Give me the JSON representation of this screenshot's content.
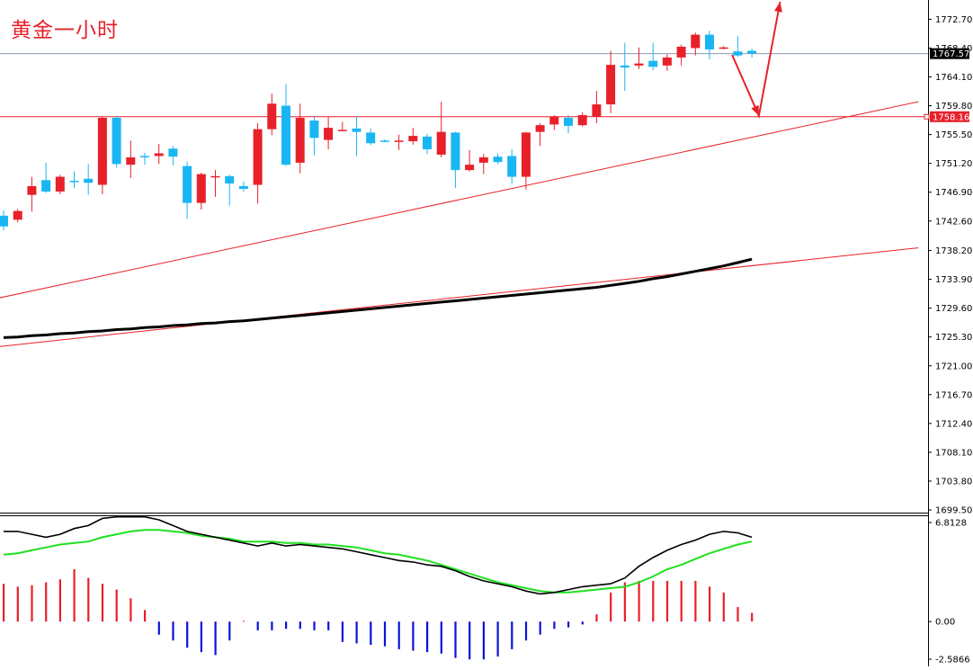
{
  "title": "黄金一小时",
  "chart_data": [
    {
      "type": "candlestick",
      "title": "黄金一小时",
      "ylim": [
        1699.5,
        1774.5
      ],
      "yticks": [
        "1772.70",
        "1768.40",
        "1764.10",
        "1759.80",
        "1755.50",
        "1751.20",
        "1746.90",
        "1742.60",
        "1738.20",
        "1733.90",
        "1729.60",
        "1725.30",
        "1721.00",
        "1716.70",
        "1712.40",
        "1708.10",
        "1703.80",
        "1699.50"
      ],
      "price_markers": [
        {
          "label": "1767.57",
          "value": 1767.57,
          "color": "#000000",
          "text_color": "#ffffff",
          "line_color": "#8a9ab5"
        },
        {
          "label": "1758.16",
          "value": 1758.16,
          "color": "#e8202a",
          "text_color": "#ffffff",
          "line_color": "#e8202a"
        }
      ],
      "up_color": "#e8202a",
      "down_color": "#1ab6f3",
      "candles": [
        [
          1743.4,
          1741.8,
          1744.2,
          1741.2
        ],
        [
          1742.8,
          1744.1,
          1744.4,
          1742.4
        ],
        [
          1746.5,
          1747.8,
          1749.2,
          1744.0
        ],
        [
          1748.7,
          1747.0,
          1751.3,
          1746.8
        ],
        [
          1747.0,
          1749.2,
          1749.5,
          1746.6
        ],
        [
          1748.6,
          1748.4,
          1750.0,
          1747.5
        ],
        [
          1748.9,
          1748.3,
          1751.1,
          1746.5
        ],
        [
          1748.0,
          1758.0,
          1758.2,
          1746.6
        ],
        [
          1758.0,
          1751.1,
          1758.3,
          1750.6
        ],
        [
          1751.0,
          1752.1,
          1754.6,
          1749.0
        ],
        [
          1752.3,
          1752.2,
          1752.8,
          1751.0
        ],
        [
          1752.3,
          1752.7,
          1754.1,
          1751.1
        ],
        [
          1753.4,
          1752.2,
          1753.8,
          1750.9
        ],
        [
          1750.8,
          1745.3,
          1751.5,
          1742.9
        ],
        [
          1745.3,
          1749.6,
          1749.8,
          1744.3
        ],
        [
          1749.3,
          1749.3,
          1750.2,
          1746.2
        ],
        [
          1749.3,
          1748.2,
          1749.5,
          1744.9
        ],
        [
          1747.8,
          1747.4,
          1748.5,
          1747.0
        ],
        [
          1748.0,
          1756.3,
          1757.2,
          1745.2
        ],
        [
          1756.3,
          1760.1,
          1761.6,
          1755.4
        ],
        [
          1759.8,
          1751.0,
          1763.0,
          1750.8
        ],
        [
          1751.3,
          1758.0,
          1760.1,
          1749.7
        ],
        [
          1757.6,
          1755.0,
          1758.3,
          1752.4
        ],
        [
          1754.7,
          1756.5,
          1758.2,
          1753.3
        ],
        [
          1756.2,
          1756.2,
          1757.4,
          1756.0
        ],
        [
          1756.4,
          1755.9,
          1758.2,
          1752.3
        ],
        [
          1755.8,
          1754.2,
          1756.4,
          1753.9
        ],
        [
          1754.6,
          1754.5,
          1754.8,
          1754.3
        ],
        [
          1754.6,
          1754.6,
          1755.5,
          1753.2
        ],
        [
          1754.5,
          1755.3,
          1756.5,
          1754.0
        ],
        [
          1755.2,
          1753.3,
          1755.6,
          1752.6
        ],
        [
          1752.5,
          1755.9,
          1760.4,
          1752.1
        ],
        [
          1755.8,
          1750.2,
          1755.9,
          1747.5
        ],
        [
          1750.2,
          1751.0,
          1753.2,
          1750.0
        ],
        [
          1751.3,
          1752.1,
          1752.6,
          1749.6
        ],
        [
          1752.2,
          1751.4,
          1752.7,
          1751.1
        ],
        [
          1752.3,
          1749.2,
          1753.3,
          1748.2
        ],
        [
          1749.2,
          1755.8,
          1755.9,
          1747.3
        ],
        [
          1755.9,
          1756.9,
          1757.2,
          1753.8
        ],
        [
          1757.0,
          1758.2,
          1758.4,
          1756.2
        ],
        [
          1758.0,
          1756.8,
          1758.4,
          1755.7
        ],
        [
          1756.9,
          1758.4,
          1758.8,
          1756.7
        ],
        [
          1758.2,
          1760.0,
          1762.0,
          1757.2
        ],
        [
          1760.0,
          1765.9,
          1768.0,
          1758.7
        ],
        [
          1765.8,
          1765.5,
          1769.2,
          1762.0
        ],
        [
          1765.8,
          1766.1,
          1768.5,
          1765.3
        ],
        [
          1766.5,
          1765.6,
          1769.2,
          1765.1
        ],
        [
          1765.8,
          1767.0,
          1767.5,
          1765.0
        ],
        [
          1767.0,
          1768.6,
          1768.9,
          1765.8
        ],
        [
          1768.4,
          1770.4,
          1770.7,
          1767.3
        ],
        [
          1770.4,
          1768.2,
          1771.0,
          1766.7
        ],
        [
          1768.3,
          1768.5,
          1768.7,
          1768.2
        ],
        [
          1767.9,
          1767.3,
          1770.2,
          1767.1
        ],
        [
          1768.0,
          1767.6,
          1768.3,
          1767.0
        ]
      ],
      "moving_average": [
        1725.2,
        1725.3,
        1725.5,
        1725.6,
        1725.8,
        1725.9,
        1726.1,
        1726.2,
        1726.4,
        1726.5,
        1726.7,
        1726.8,
        1727.0,
        1727.1,
        1727.3,
        1727.4,
        1727.6,
        1727.7,
        1727.9,
        1728.1,
        1728.3,
        1728.5,
        1728.7,
        1728.9,
        1729.1,
        1729.3,
        1729.5,
        1729.7,
        1729.9,
        1730.1,
        1730.3,
        1730.5,
        1730.7,
        1730.9,
        1731.1,
        1731.3,
        1731.5,
        1731.7,
        1731.9,
        1732.1,
        1732.3,
        1732.5,
        1732.7,
        1733.0,
        1733.3,
        1733.6,
        1734.0,
        1734.3,
        1734.7,
        1735.1,
        1735.5,
        1735.9,
        1736.4,
        1736.9
      ],
      "trendlines": [
        {
          "from": [
            -0.6,
            1731.0
          ],
          "to": [
            64.8,
            1760.4
          ],
          "color": "#e8202a"
        },
        {
          "from": [
            -0.6,
            1723.8
          ],
          "to": [
            64.8,
            1738.6
          ],
          "color": "#e8202a"
        }
      ],
      "forecast_arrow": {
        "points": [
          [
            51.6,
            1767.4
          ],
          [
            53.5,
            1758.3
          ],
          [
            55.0,
            1775.3
          ]
        ],
        "color": "#e8202a"
      }
    },
    {
      "type": "bar+line",
      "ylim": [
        -2.5866,
        6.8128
      ],
      "yticks": [
        "6.8128",
        "0.00",
        "-2.5866"
      ],
      "up_color": "#e8202a",
      "down_color": "#0a14d8",
      "histogram": [
        2.6,
        2.4,
        2.5,
        2.7,
        2.9,
        3.6,
        3.0,
        2.6,
        2.2,
        1.6,
        0.8,
        -0.9,
        -1.3,
        -1.8,
        -2.1,
        -2.3,
        -1.3,
        0.05,
        -0.6,
        -0.6,
        -0.5,
        -0.5,
        -0.6,
        -0.6,
        -1.4,
        -1.5,
        -1.6,
        -1.7,
        -1.9,
        -2.0,
        -2.1,
        -2.2,
        -2.5,
        -2.6,
        -2.6,
        -2.4,
        -1.9,
        -1.3,
        -0.9,
        -0.5,
        -0.4,
        -0.2,
        0.5,
        2.0,
        2.7,
        2.8,
        2.8,
        2.8,
        2.8,
        2.8,
        2.4,
        2.0,
        1.0,
        0.6
      ],
      "fast_line": [
        6.2,
        6.2,
        6.0,
        5.8,
        6.0,
        6.4,
        6.6,
        7.1,
        7.2,
        7.2,
        7.2,
        7.0,
        6.6,
        6.2,
        6.0,
        5.8,
        5.6,
        5.4,
        5.2,
        5.4,
        5.2,
        5.3,
        5.2,
        5.1,
        5.0,
        4.8,
        4.6,
        4.4,
        4.2,
        4.1,
        3.9,
        3.8,
        3.5,
        3.1,
        2.8,
        2.6,
        2.4,
        2.1,
        1.9,
        2.0,
        2.2,
        2.4,
        2.5,
        2.6,
        3.0,
        3.8,
        4.4,
        4.9,
        5.3,
        5.6,
        6.0,
        6.2,
        6.1,
        5.8
      ],
      "signal_line": [
        4.6,
        4.7,
        4.9,
        5.1,
        5.3,
        5.4,
        5.5,
        5.8,
        6.0,
        6.2,
        6.3,
        6.3,
        6.2,
        6.1,
        5.9,
        5.8,
        5.7,
        5.5,
        5.5,
        5.5,
        5.4,
        5.4,
        5.3,
        5.3,
        5.2,
        5.1,
        4.9,
        4.7,
        4.6,
        4.4,
        4.2,
        3.9,
        3.6,
        3.3,
        3.0,
        2.7,
        2.5,
        2.3,
        2.1,
        2.0,
        2.0,
        2.1,
        2.2,
        2.3,
        2.4,
        2.7,
        3.1,
        3.6,
        3.9,
        4.3,
        4.7,
        5.0,
        5.3,
        5.5
      ],
      "fast_color": "#000000",
      "signal_color": "#20e020"
    }
  ]
}
